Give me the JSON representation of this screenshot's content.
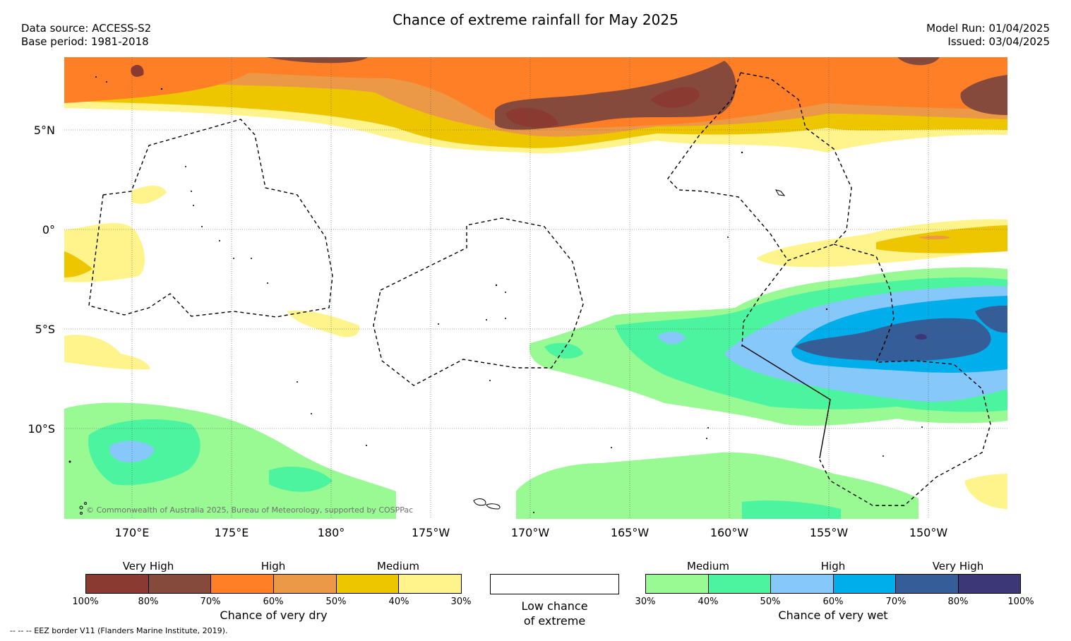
{
  "title": "Chance of extreme rainfall for May 2025",
  "data_source": "Data source: ACCESS-S2",
  "base_period": "Base period: 1981-2018",
  "model_run": "Model Run: 01/04/2025",
  "issued": "Issued: 03/04/2025",
  "lat_labels": [
    "5°N",
    "0°",
    "5°S",
    "10°S"
  ],
  "lon_labels": [
    "170°E",
    "175°E",
    "180°",
    "175°W",
    "170°W",
    "165°W",
    "160°W",
    "155°W",
    "150°W"
  ],
  "copyright": "© Commonwealth of Australia 2025, Bureau of Meteorology, supported by COSPPac",
  "legend_dry": {
    "categories": [
      "Very High",
      "High",
      "Medium"
    ],
    "colors": [
      "#8b3a32",
      "#864a3c",
      "#ff7f27",
      "#ec9947",
      "#eec600",
      "#fff48c"
    ],
    "ticks": [
      "100%",
      "80%",
      "70%",
      "60%",
      "50%",
      "40%",
      "30%"
    ],
    "caption": "Chance of very dry"
  },
  "legend_low": {
    "caption_line1": "Low chance",
    "caption_line2": "of extreme",
    "color": "#ffffff"
  },
  "legend_wet": {
    "categories": [
      "Medium",
      "High",
      "Very High"
    ],
    "colors": [
      "#99fa94",
      "#4cf4a0",
      "#86c8fa",
      "#00aeeb",
      "#355e98",
      "#3c3878"
    ],
    "ticks": [
      "30%",
      "40%",
      "50%",
      "60%",
      "70%",
      "80%",
      "100%"
    ],
    "caption": "Chance of very wet"
  },
  "footer": "--  --  -- EEZ border V11 (Flanders Marine Institute, 2019)."
}
